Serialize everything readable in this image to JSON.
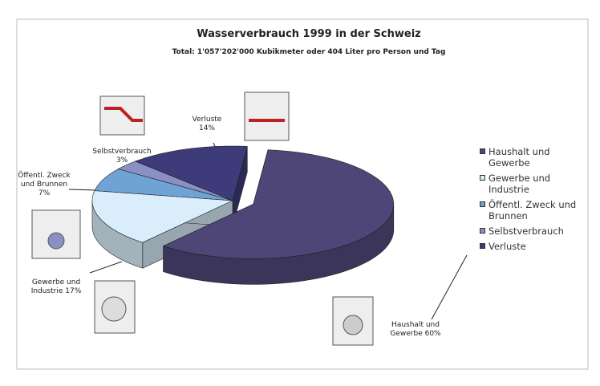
{
  "chart_data": {
    "type": "pie3d",
    "title": "Wasserverbrauch 1999 in der Schweiz",
    "subtitle": "Total: 1'057'202'000 Kubikmeter oder 404 Liter pro Person und Tag",
    "categories": [
      "Haushalt und Gewerbe",
      "Gewerbe und Industrie",
      "Öffentl. Zweck und Brunnen",
      "Selbstverbrauch",
      "Verluste"
    ],
    "values": [
      60,
      17,
      7,
      3,
      14
    ],
    "value_labels": [
      "60%",
      "17%",
      "7%",
      "3%",
      "14%"
    ],
    "colors": [
      "#4d4676",
      "#d9eefa",
      "#6fa3d6",
      "#8a90c4",
      "#3e3b7a"
    ],
    "legend": "right"
  }
}
